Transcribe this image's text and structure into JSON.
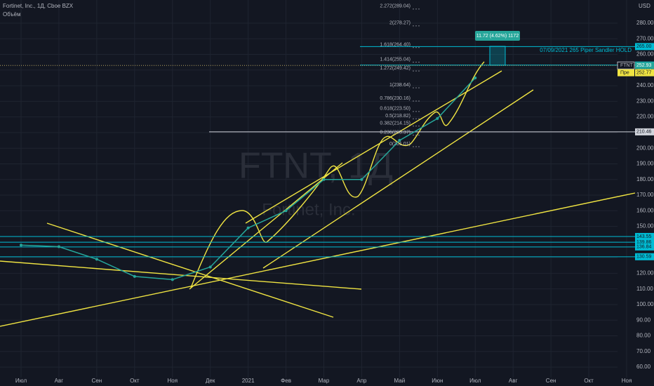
{
  "chart_data": {
    "type": "line",
    "title": "Fortinet, Inc., 1Д, Cboe BZX",
    "subtitle": "Объём",
    "watermark": "FTNT, 1Д",
    "watermark_subtitle": "Fortinet, Inc.",
    "y_axis_label": "USD",
    "categories": [
      "Июл",
      "Авг",
      "Сен",
      "Окт",
      "Ноя",
      "Дек",
      "2021",
      "Фев",
      "Мар",
      "Апр",
      "Май",
      "Июн",
      "Июл",
      "Авг",
      "Сен",
      "Окт",
      "Ноя"
    ],
    "series": [
      {
        "name": "FTNT",
        "color": "#26a69a",
        "values": [
          138,
          137,
          129,
          118,
          116,
          124,
          149,
          160,
          180,
          180,
          205,
          219,
          245,
          null,
          null,
          null,
          null
        ]
      }
    ],
    "ylim": [
      53.3,
      294.8
    ],
    "yticks": [
      {
        "value": 60,
        "label": "60.00"
      },
      {
        "value": 70,
        "label": "70.00"
      },
      {
        "value": 80,
        "label": "80.00"
      },
      {
        "value": 90,
        "label": "90.00"
      },
      {
        "value": 100,
        "label": "100.00"
      },
      {
        "value": 110,
        "label": "110.00"
      },
      {
        "value": 120,
        "label": "120.00"
      },
      {
        "value": 130,
        "label": "130.00"
      },
      {
        "value": 140,
        "label": "140.00"
      },
      {
        "value": 150,
        "label": "150.00"
      },
      {
        "value": 160,
        "label": "160.00"
      },
      {
        "value": 170,
        "label": "170.00"
      },
      {
        "value": 180,
        "label": "180.00"
      },
      {
        "value": 190,
        "label": "190.00"
      },
      {
        "value": 200,
        "label": "200.00"
      },
      {
        "value": 210,
        "label": "210.00"
      },
      {
        "value": 220,
        "label": "220.00"
      },
      {
        "value": 230,
        "label": "230.00"
      },
      {
        "value": 240,
        "label": "240.00"
      },
      {
        "value": 250,
        "label": "250.00"
      },
      {
        "value": 260,
        "label": "260.00"
      },
      {
        "value": 270,
        "label": "270.00"
      },
      {
        "value": 280,
        "label": "280.00"
      }
    ],
    "grid": true,
    "levels": [
      {
        "value": 265,
        "label": "265.00",
        "color": "#00bcd4"
      },
      {
        "value": 253.18,
        "label": "253.18",
        "color": "#00bcd4"
      },
      {
        "value": 210.46,
        "label": "210.46",
        "color": "#d1d4dc"
      },
      {
        "value": 143.55,
        "label": "143.55",
        "color": "#00bcd4"
      },
      {
        "value": 139.86,
        "label": "139.86",
        "color": "#00bcd4"
      },
      {
        "value": 136.84,
        "label": "136.84",
        "color": "#00bcd4"
      },
      {
        "value": 130.59,
        "label": "130.59",
        "color": "#00bcd4"
      }
    ],
    "last_price": {
      "value": 252.93,
      "label": "252.93"
    },
    "pre_price": {
      "name": "Пре",
      "value": 252.77,
      "label": "252.77"
    },
    "fibs": [
      {
        "value": 289.04,
        "label": "2.272(289.04)"
      },
      {
        "value": 278.27,
        "label": "2(278.27)"
      },
      {
        "value": 264.4,
        "label": "1.618(264.40)"
      },
      {
        "value": 255.04,
        "label": "1.414(255.04)"
      },
      {
        "value": 249.42,
        "label": "1.272(249.42)"
      },
      {
        "value": 238.64,
        "label": "1(238.64)"
      },
      {
        "value": 230.16,
        "label": "0.786(230.16)"
      },
      {
        "value": 223.5,
        "label": "0.618(223.50)"
      },
      {
        "value": 218.82,
        "label": "0.5(218.82)"
      },
      {
        "value": 214.15,
        "label": "0.382(214.15)"
      },
      {
        "value": 208.37,
        "label": "0.236(208.37)"
      },
      {
        "value": 201.01,
        "label": "0(201.01)"
      }
    ],
    "measure": "11.72 (4.62%) 1172",
    "note": "07/09/2021 265 Piper Sandler  HOLD"
  }
}
